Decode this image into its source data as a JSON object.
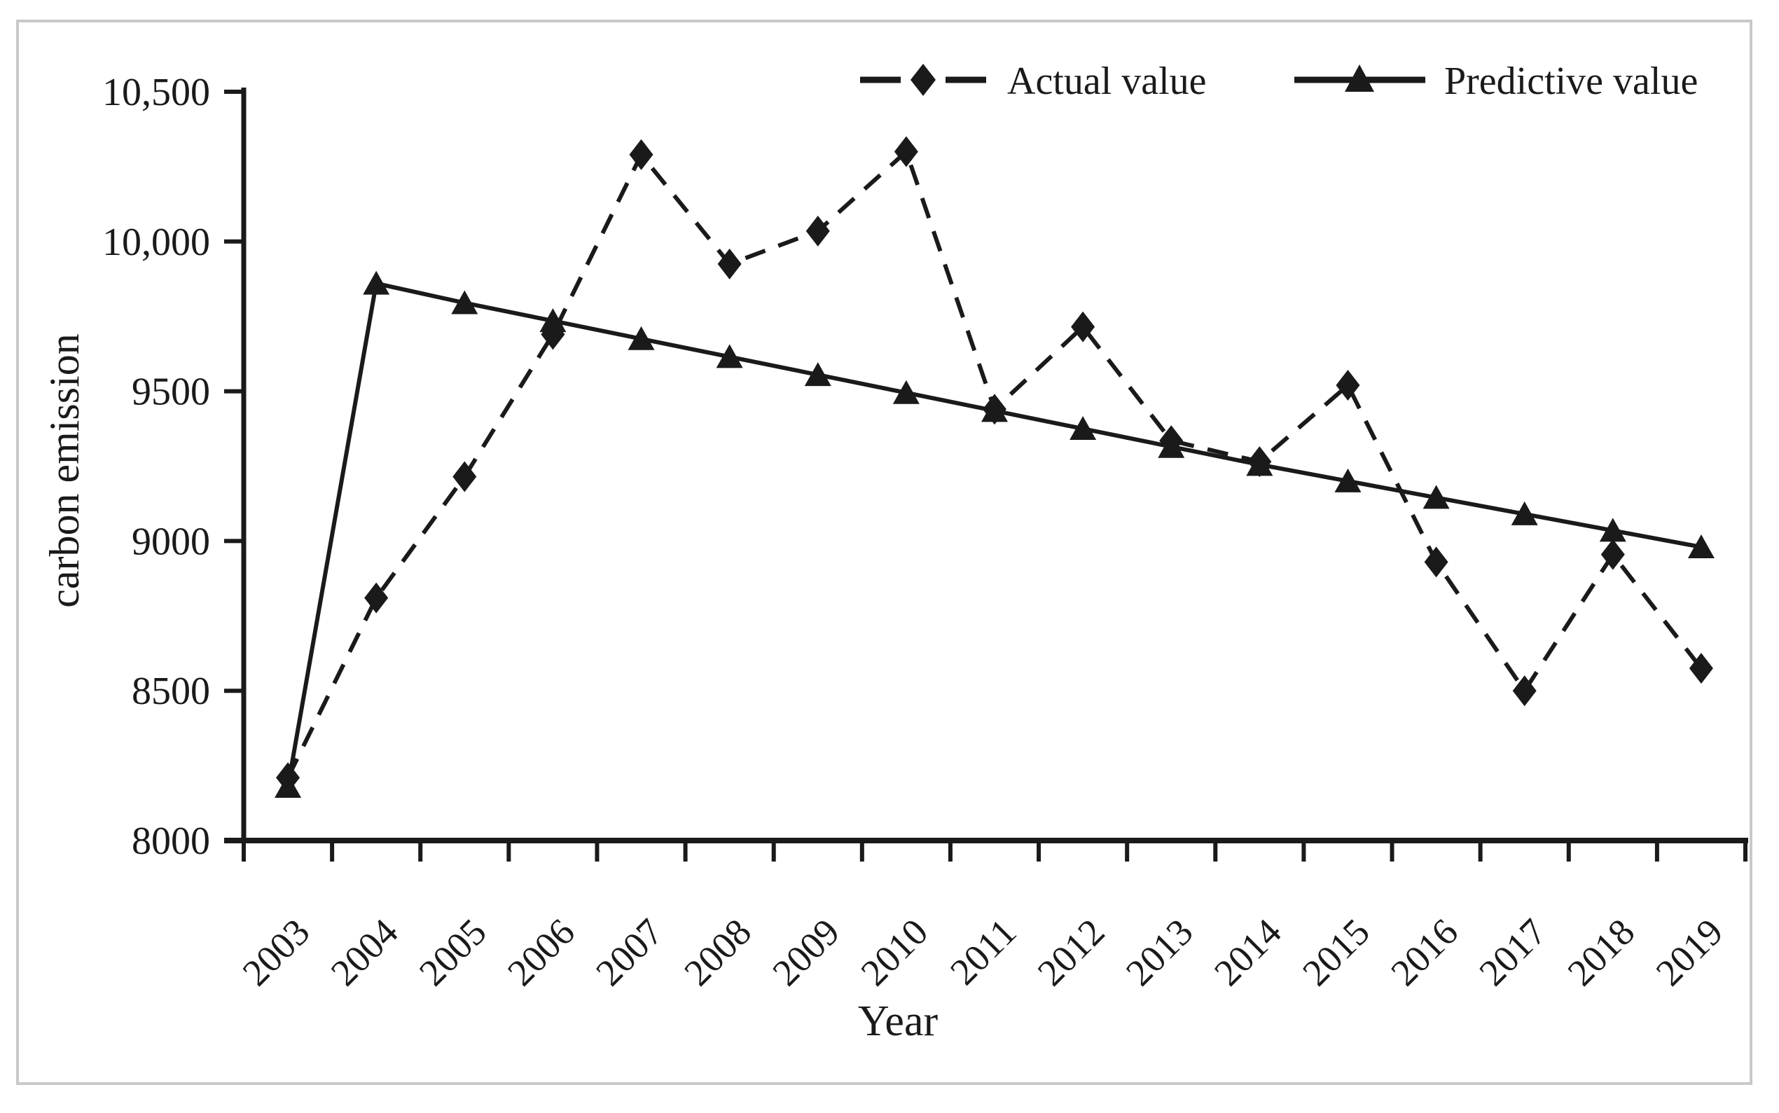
{
  "figure": {
    "background": "#ffffff",
    "border_color": "#c9c9c9",
    "ink_color": "#1a1a1a"
  },
  "chart_data": {
    "type": "line",
    "title": "",
    "x_axis": {
      "label": "Year"
    },
    "y_axis": {
      "label": "carbon emission",
      "range": [
        8000,
        10500
      ],
      "ticks": [
        {
          "value": 8000,
          "label": "8000"
        },
        {
          "value": 8500,
          "label": "8500"
        },
        {
          "value": 9000,
          "label": "9000"
        },
        {
          "value": 9500,
          "label": "9500"
        },
        {
          "value": 10000,
          "label": "10,000"
        },
        {
          "value": 10500,
          "label": "10,500"
        }
      ]
    },
    "x": [
      "2003",
      "2004",
      "2005",
      "2006",
      "2007",
      "2008",
      "2009",
      "2010",
      "2011",
      "2012",
      "2013",
      "2014",
      "2015",
      "2016",
      "2017",
      "2018",
      "2019"
    ],
    "grid": false,
    "legend": {
      "position": "top-right",
      "entries": [
        {
          "label": "Actual value",
          "line": "dashed",
          "marker": "diamond"
        },
        {
          "label": "Predictive value",
          "line": "solid",
          "marker": "triangle"
        }
      ]
    },
    "series": [
      {
        "name": "Actual value",
        "line": "dashed",
        "marker": "diamond",
        "values": [
          8210,
          8810,
          9215,
          9690,
          10290,
          9925,
          10035,
          10300,
          9440,
          9715,
          9335,
          9265,
          9520,
          8930,
          8500,
          8955,
          8575
        ]
      },
      {
        "name": "Predictive value",
        "line": "solid",
        "marker": "triangle",
        "values": [
          8180,
          9860,
          9795,
          9735,
          9675,
          9615,
          9555,
          9495,
          9435,
          9375,
          9315,
          9255,
          9200,
          9145,
          9090,
          9035,
          8980
        ]
      }
    ]
  }
}
